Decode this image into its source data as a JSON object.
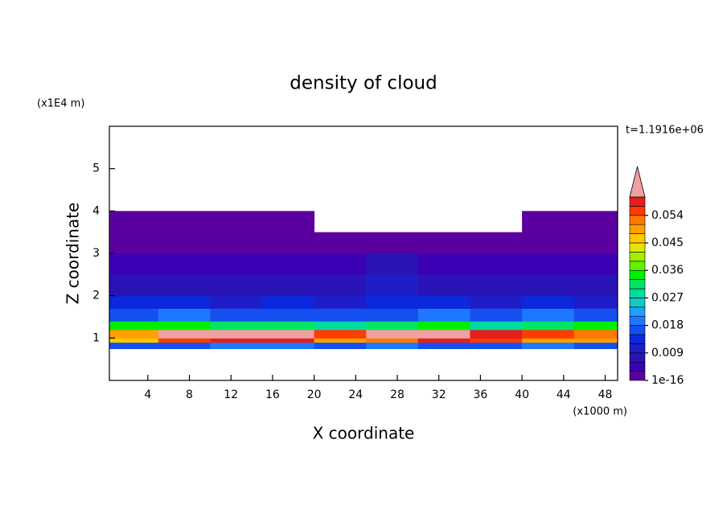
{
  "chart_data": {
    "type": "contour",
    "title": "density of cloud",
    "xlabel": "X coordinate",
    "ylabel": "Z coordinate",
    "x_unit": "(x1000 m)",
    "y_unit": "(x1E4 m)",
    "time_label": "t=1.1916e+06",
    "xlim": [
      0.3,
      49.2
    ],
    "ylim": [
      0,
      6
    ],
    "xticks": [
      4,
      8,
      12,
      16,
      20,
      24,
      28,
      32,
      36,
      40,
      44,
      48
    ],
    "yticks": [
      1,
      2,
      3,
      4,
      5
    ],
    "x_edges": [
      0.3,
      5,
      10,
      15,
      20,
      25,
      30,
      35,
      40,
      45,
      49.2
    ],
    "z_edges": [
      0.75,
      0.9,
      1.0,
      1.2,
      1.4,
      1.7,
      2.0,
      2.5,
      3.0,
      3.5,
      4.0
    ],
    "values": [
      [
        0.016,
        0.018,
        0.02,
        0.019,
        0.017,
        0.02,
        0.018,
        0.016,
        0.019,
        0.017
      ],
      [
        0.045,
        0.056,
        0.058,
        0.057,
        0.05,
        0.052,
        0.057,
        0.055,
        0.05,
        0.048
      ],
      [
        0.05,
        0.062,
        0.064,
        0.063,
        0.054,
        0.062,
        0.064,
        0.058,
        0.054,
        0.052
      ],
      [
        0.033,
        0.036,
        0.03,
        0.032,
        0.027,
        0.03,
        0.033,
        0.028,
        0.032,
        0.035
      ],
      [
        0.018,
        0.02,
        0.016,
        0.018,
        0.015,
        0.017,
        0.019,
        0.016,
        0.02,
        0.018
      ],
      [
        0.013,
        0.012,
        0.011,
        0.012,
        0.01,
        0.012,
        0.013,
        0.011,
        0.012,
        0.011
      ],
      [
        0.008,
        0.009,
        0.007,
        0.008,
        0.009,
        0.01,
        0.009,
        0.007,
        0.008,
        0.008
      ],
      [
        0.005,
        0.004,
        0.005,
        0.004,
        0.005,
        0.006,
        0.005,
        0.004,
        0.005,
        0.004
      ],
      [
        0.002,
        0.002,
        0.002,
        0.002,
        0.002,
        0.002,
        0.002,
        0.002,
        0.002,
        0.002
      ],
      [
        0.001,
        0.001,
        0.001,
        0.001,
        null,
        null,
        null,
        null,
        0.001,
        0.001
      ]
    ],
    "clim": [
      0,
      0.06
    ],
    "colors": [
      "#5a00a0",
      "#3c00b4",
      "#2814b4",
      "#1e1ec8",
      "#0a28dc",
      "#1450f0",
      "#1e78ff",
      "#1ea0ff",
      "#14c8c8",
      "#00dca0",
      "#00e664",
      "#00f000",
      "#64f000",
      "#a0f000",
      "#e6e600",
      "#ffc800",
      "#ffa000",
      "#ff7800",
      "#ff3c00",
      "#e61e1e"
    ],
    "over_color": "#f0a0a0",
    "colorbar_ticks": [
      {
        "value": 1e-16,
        "label": "1e-16"
      },
      0.009,
      0.018,
      0.027,
      0.036,
      0.045,
      0.054
    ]
  }
}
